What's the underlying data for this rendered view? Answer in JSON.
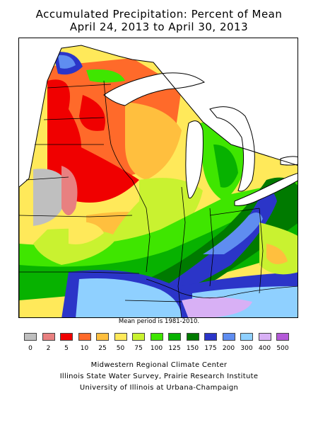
{
  "title_line1": "Accumulated Precipitation: Percent of Mean",
  "title_line2": "April 24, 2013 to April 30, 2013",
  "mean_period_note": "Mean period is 1981-2010.",
  "legend": {
    "colors": [
      "#bfbfbf",
      "#e88080",
      "#f00000",
      "#ff6a2a",
      "#ffbf3e",
      "#ffe95a",
      "#c9f230",
      "#3fe600",
      "#07b200",
      "#007a00",
      "#2b35c8",
      "#5f8df0",
      "#8fd0ff",
      "#d8b0f5",
      "#b45ad8"
    ],
    "ticks": [
      "0",
      "2",
      "5",
      "10",
      "25",
      "50",
      "75",
      "100",
      "125",
      "150",
      "175",
      "200",
      "300",
      "400",
      "500"
    ]
  },
  "credits": {
    "line1": "Midwestern Regional Climate Center",
    "line2": "Illinois State Water Survey, Prairie Research Institute",
    "line3": "University of Illinois at Urbana-Champaign"
  },
  "map": {
    "region": "Midwestern United States",
    "palette_keys": {
      "gray": "#bfbfbf",
      "pink": "#e88080",
      "red": "#f00000",
      "orange": "#ff6a2a",
      "lightorange": "#ffbf3e",
      "yellow": "#ffe95a",
      "yellowgreen": "#c9f230",
      "green": "#3fe600",
      "midgreen": "#07b200",
      "darkgreen": "#007a00",
      "blue": "#2b35c8",
      "medblue": "#5f8df0",
      "lightblue": "#8fd0ff",
      "lavender": "#d8b0f5",
      "purple": "#b45ad8"
    }
  }
}
